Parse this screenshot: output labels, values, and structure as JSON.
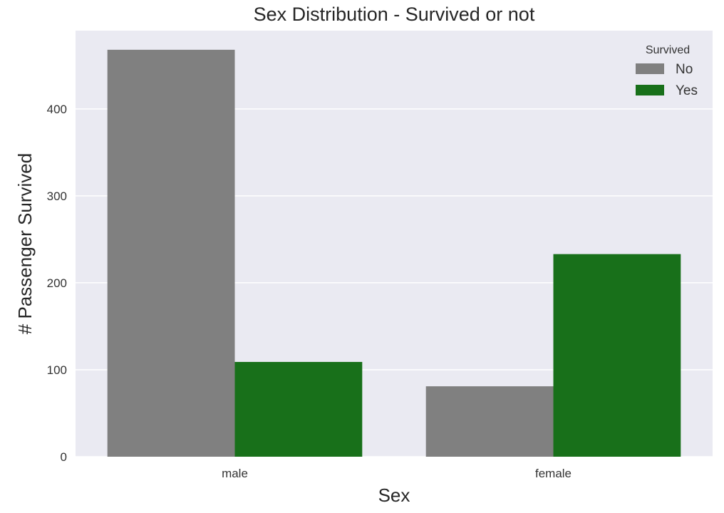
{
  "chart_data": {
    "type": "bar",
    "title": "Sex Distribution - Survived or not",
    "xlabel": "Sex",
    "ylabel": "# Passenger Survived",
    "categories": [
      "male",
      "female"
    ],
    "series": [
      {
        "name": "No",
        "values": [
          468,
          81
        ],
        "color": "#808080"
      },
      {
        "name": "Yes",
        "values": [
          109,
          233
        ],
        "color": "#18701a"
      }
    ],
    "ylim": [
      0,
      490
    ],
    "yticks": [
      0,
      100,
      200,
      300,
      400
    ],
    "ytick_labels": [
      "0",
      "100",
      "200",
      "300",
      "400"
    ],
    "grid": true,
    "legend": {
      "title": "Survived",
      "placement": "top-right"
    },
    "background_color": "#eaeaf2",
    "grid_color": "#ffffff"
  }
}
